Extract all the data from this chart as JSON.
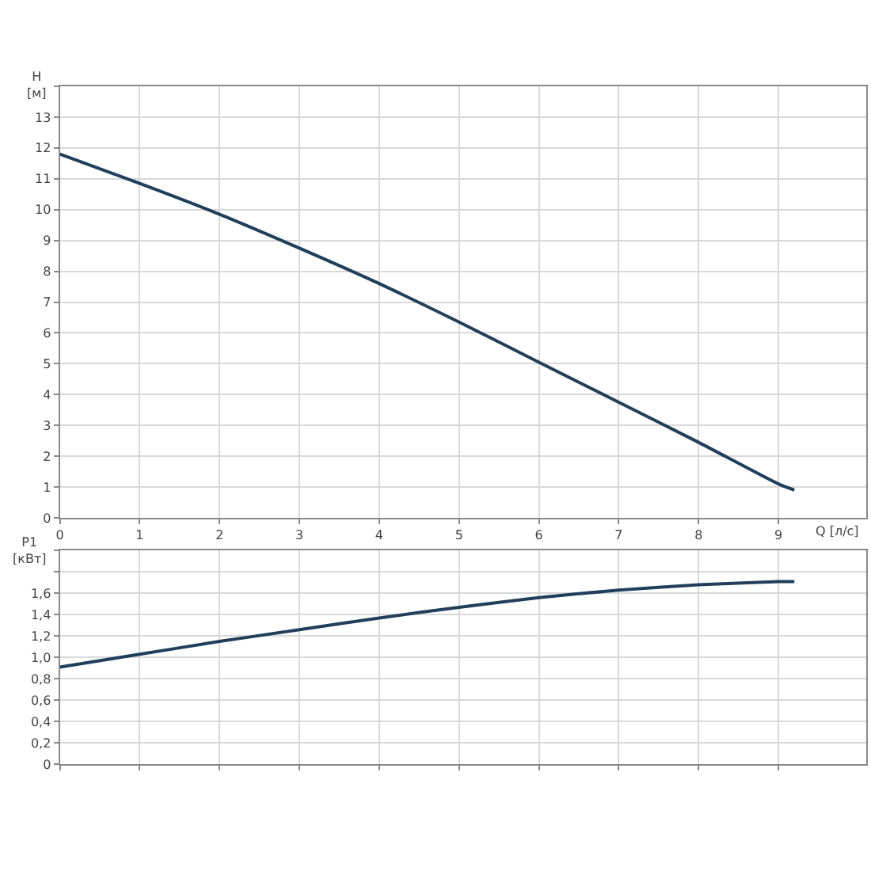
{
  "chart_data": [
    {
      "type": "line",
      "xlabel": "Q [л/с]",
      "ylabel": "H\n[м]",
      "x": [
        0,
        1,
        2,
        3,
        4,
        5,
        6,
        7,
        8,
        9,
        9.2
      ],
      "series": [
        {
          "color": "#1f3f5a",
          "values": [
            11.8,
            10.85,
            9.85,
            8.75,
            7.6,
            6.35,
            5.05,
            3.75,
            2.45,
            1.1,
            0.9
          ]
        }
      ],
      "xlim": [
        0,
        10.1
      ],
      "xticks": [
        0,
        1,
        2,
        3,
        4,
        5,
        6,
        7,
        8,
        9
      ],
      "ylim": [
        0,
        14
      ],
      "yticks": [
        0,
        1,
        2,
        3,
        4,
        5,
        6,
        7,
        8,
        9,
        10,
        11,
        12,
        13,
        {
          "value": 14,
          "label": null
        }
      ],
      "grid": true,
      "line_style": "solid",
      "marker": "none"
    },
    {
      "type": "line",
      "ylabel": "P1\n[кВт]",
      "x": [
        0,
        1,
        2,
        3,
        4,
        5,
        6,
        7,
        8,
        9,
        9.2
      ],
      "series": [
        {
          "color": "#1f3f5a",
          "values": [
            0.91,
            1.03,
            1.15,
            1.26,
            1.37,
            1.47,
            1.56,
            1.63,
            1.68,
            1.71,
            1.71
          ]
        }
      ],
      "xlim": [
        0,
        10.1
      ],
      "xticks": [
        0,
        1,
        2,
        3,
        4,
        5,
        6,
        7,
        8,
        9
      ],
      "ylim": [
        0,
        2.0
      ],
      "yticks": [
        0,
        {
          "value": 0.2,
          "label": "0,2"
        },
        {
          "value": 0.4,
          "label": "0,4"
        },
        {
          "value": 0.6,
          "label": "0,6"
        },
        {
          "value": 0.8,
          "label": "0,8"
        },
        {
          "value": 1.0,
          "label": "1,0"
        },
        {
          "value": 1.2,
          "label": "1,2"
        },
        {
          "value": 1.4,
          "label": "1,4"
        },
        {
          "value": 1.6,
          "label": "1,6"
        },
        {
          "value": 1.8,
          "label": null
        },
        {
          "value": 2.0,
          "label": null
        }
      ],
      "tick_labels": "y",
      "grid": true,
      "line_style": "solid",
      "marker": "none"
    }
  ]
}
